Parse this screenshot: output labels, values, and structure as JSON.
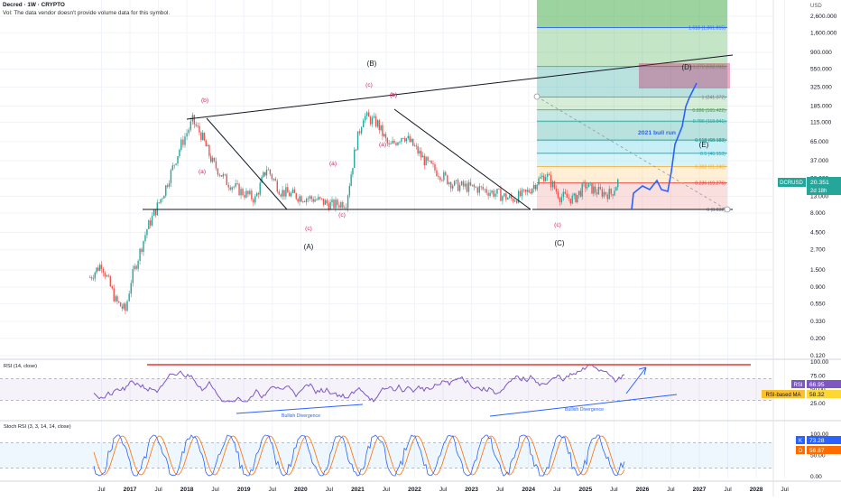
{
  "header": {
    "title": "Decred · 1W · CRYPTO",
    "note": "Vol: The data vendor doesn't provide volume data for this symbol.",
    "currency": "USD"
  },
  "price_axis": {
    "ticks": [
      "2,600.000",
      "1,600.000",
      "900.000",
      "550.000",
      "325.000",
      "185.000",
      "115.000",
      "65.000",
      "37.000",
      "22.000",
      "13.000",
      "8.000",
      "4.500",
      "2.700",
      "1.500",
      "0.900",
      "0.550",
      "0.330",
      "0.200",
      "0.120"
    ],
    "tick_values": [
      2600,
      1600,
      900,
      550,
      325,
      185,
      115,
      65,
      37,
      22,
      13,
      8,
      4.5,
      2.7,
      1.5,
      0.9,
      0.55,
      0.33,
      0.2,
      0.12
    ],
    "scale": "log"
  },
  "time_axis": {
    "labels": [
      "Jul",
      "2017",
      "Jul",
      "2018",
      "Jul",
      "2019",
      "Jul",
      "2020",
      "Jul",
      "2021",
      "Jul",
      "2022",
      "Jul",
      "2023",
      "Jul",
      "2024",
      "Jul",
      "2025",
      "Jul",
      "2026",
      "Jul",
      "2027",
      "Jul",
      "2028",
      "Jul"
    ]
  },
  "ticker_tag": {
    "symbol": "DCRUSD",
    "price": "20.351",
    "countdown": "2d 18h",
    "color": "#26a69a"
  },
  "fib_levels": [
    {
      "label": "1.618 (1,861.815)",
      "value": 1861.815,
      "color": "#2962ff"
    },
    {
      "label": "1.272 (592.911)",
      "value": 592.911,
      "color": "#4caf50"
    },
    {
      "label": "1 (241.372)",
      "value": 241.372,
      "color": "#787b86"
    },
    {
      "label": "0.886 (165.422)",
      "value": 165.422,
      "color": "#43a047"
    },
    {
      "label": "0.786 (118.841)",
      "value": 118.841,
      "color": "#26a69a"
    },
    {
      "label": "0.618 (68.183)",
      "value": 68.183,
      "color": "#00897b"
    },
    {
      "label": "0.5 (46.153)",
      "value": 46.153,
      "color": "#00acc1"
    },
    {
      "label": "0.382 (31.240)",
      "value": 31.24,
      "color": "#f9a825"
    },
    {
      "label": "0.236 (19.276)",
      "value": 19.276,
      "color": "#e53935"
    },
    {
      "label": "0 (8.832)",
      "value": 8.832,
      "color": "#787b86"
    }
  ],
  "wave_labels": [
    "(B)",
    "(A)",
    "(C)",
    "(D)",
    "(E)",
    "(b)",
    "(c)",
    "(a)",
    "(b)",
    "(c)",
    "(a)",
    "(c)",
    "(b)",
    "(a)",
    "(c)"
  ],
  "annotations": {
    "bull_run": "2021 bull run"
  },
  "rsi_panel": {
    "title": "RSI (14, close)",
    "ticks": [
      "100.00",
      "75.00",
      "50.00",
      "25.00"
    ],
    "tick_values": [
      100,
      75,
      50,
      25
    ],
    "rsi_value": "66.95",
    "rsi_label": "RSI",
    "ma_value": "58.32",
    "ma_label": "RSI-based MA",
    "divergence_label_1": "Bullish Divergence",
    "divergence_label_2": "Bullish Divergence"
  },
  "stoch_panel": {
    "title": "Stoch RSI (3, 3, 14, 14, close)",
    "ticks": [
      "100.00",
      "50.00",
      "0.00"
    ],
    "tick_values": [
      100,
      50,
      0
    ],
    "k_label": "K",
    "k_value": "73.28",
    "d_label": "D",
    "d_value": "56.87"
  },
  "chart_data": {
    "type": "line",
    "title": "Decred · 1W · CRYPTO",
    "xlabel": "",
    "ylabel": "",
    "yscale": "log",
    "ylim": [
      0.12,
      2600
    ],
    "x": [
      2016.3,
      2016.5,
      2016.75,
      2016.92,
      2017.02,
      2017.3,
      2017.6,
      2017.9,
      2018.1,
      2018.25,
      2018.45,
      2018.7,
      2018.95,
      2019.2,
      2019.4,
      2019.65,
      2019.95,
      2020.25,
      2020.55,
      2020.8,
      2020.97,
      2021.1,
      2021.35,
      2021.55,
      2021.8,
      2022.0,
      2022.2,
      2022.45,
      2022.7,
      2022.95,
      2023.2,
      2023.45,
      2023.7,
      2023.95,
      2024.15,
      2024.3,
      2024.55,
      2024.8,
      2025.0,
      2025.2,
      2025.45,
      2025.6
    ],
    "series": [
      {
        "values": [
          1.2,
          1.8,
          0.6,
          0.45,
          1.1,
          5,
          15,
          60,
          120,
          80,
          35,
          20,
          15,
          12,
          30,
          15,
          13,
          12,
          10,
          11,
          60,
          140,
          110,
          55,
          80,
          55,
          35,
          25,
          18,
          17,
          16,
          14,
          12,
          14,
          20,
          25,
          13,
          12,
          18,
          15,
          14,
          22
        ]
      }
    ]
  }
}
